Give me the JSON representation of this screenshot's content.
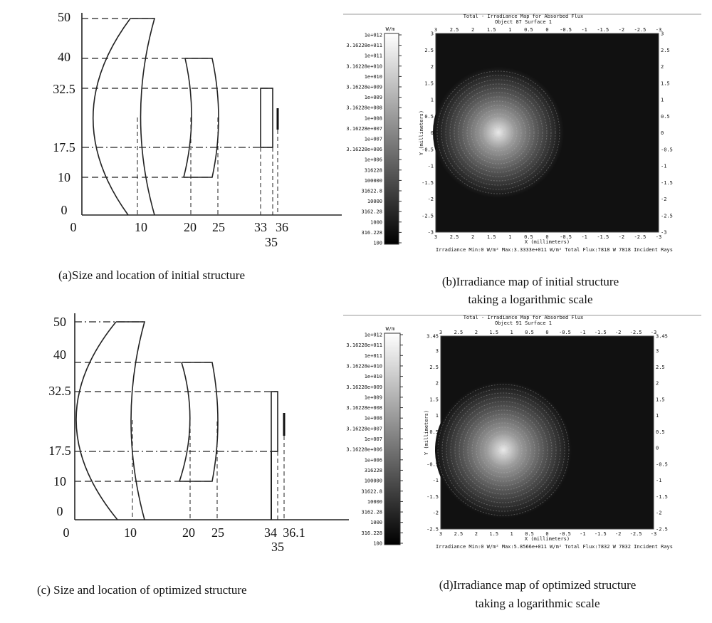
{
  "structure_a": {
    "y_labels": [
      "50",
      "40",
      "32.5",
      "17.5",
      "10",
      "0"
    ],
    "x_labels": [
      "0",
      "10",
      "20",
      "25",
      "33",
      "36",
      "35"
    ],
    "caption": "(a)Size and location of initial structure"
  },
  "map_b": {
    "title": "Total - Irradiance Map for Absorbed Flux",
    "subtitle": "Object 87 Surface 1",
    "unit": "W/m",
    "colorbar": [
      "1e+012",
      "3.16228e+011",
      "1e+011",
      "3.16228e+010",
      "1e+010",
      "3.16228e+009",
      "1e+009",
      "3.16228e+008",
      "1e+008",
      "3.16228e+007",
      "1e+007",
      "3.16228e+006",
      "1e+006",
      "316228",
      "100000",
      "31622.8",
      "10000",
      "3162.28",
      "1000",
      "316.228",
      "100"
    ],
    "x_ticks": [
      "3",
      "2.5",
      "2",
      "1.5",
      "1",
      "0.5",
      "0",
      "-0.5",
      "-1",
      "-1.5",
      "-2",
      "-2.5",
      "-3"
    ],
    "y_ticks": [
      "3",
      "2.5",
      "2",
      "1.5",
      "1",
      "0.5",
      "0",
      "-0.5",
      "-1",
      "-1.5",
      "-2",
      "-2.5",
      "-3"
    ],
    "x_label": "X (millimeters)",
    "y_label": "Y (millimeters)",
    "footer": "Irradiance Min:0 W/m² Max:3.3333e+011 W/m² Total Flux:7818 W 7818 Incident Rays",
    "caption": [
      "(b)Irradiance map of initial structure",
      "taking a logarithmic scale"
    ]
  },
  "structure_c": {
    "y_labels": [
      "50",
      "40",
      "32.5",
      "17.5",
      "10",
      "0"
    ],
    "x_labels": [
      "0",
      "10",
      "20",
      "25",
      "34",
      "36.1",
      "35"
    ],
    "caption": "(c) Size and location of optimized structure"
  },
  "map_d": {
    "title": "Total - Irradiance Map for Absorbed Flux",
    "subtitle": "Object 91 Surface 1",
    "unit": "W/m",
    "colorbar": [
      "1e+012",
      "3.16228e+011",
      "1e+011",
      "3.16228e+010",
      "1e+010",
      "3.16228e+009",
      "1e+009",
      "3.16228e+008",
      "1e+008",
      "3.16228e+007",
      "1e+007",
      "3.16228e+006",
      "1e+006",
      "316228",
      "100000",
      "31622.8",
      "10000",
      "3162.28",
      "1000",
      "316.228",
      "100"
    ],
    "x_ticks": [
      "3",
      "2.5",
      "2",
      "1.5",
      "1",
      "0.5",
      "0",
      "-0.5",
      "-1",
      "-1.5",
      "-2",
      "-2.5",
      "-3"
    ],
    "y_ticks": [
      "3.45",
      "3",
      "2.5",
      "2",
      "1.5",
      "1",
      "0.5",
      "0",
      "-0.5",
      "-1",
      "-1.5",
      "-2",
      "-2.5"
    ],
    "x_label": "X (millimeters)",
    "y_label": "Y (millimeters)",
    "footer": "Irradiance Min:0 W/m² Max:5.8566e+011 W/m² Total Flux:7832 W 7832 Incident Rays",
    "caption": [
      "(d)Irradiance map of optimized structure",
      "taking a logarithmic scale"
    ]
  }
}
